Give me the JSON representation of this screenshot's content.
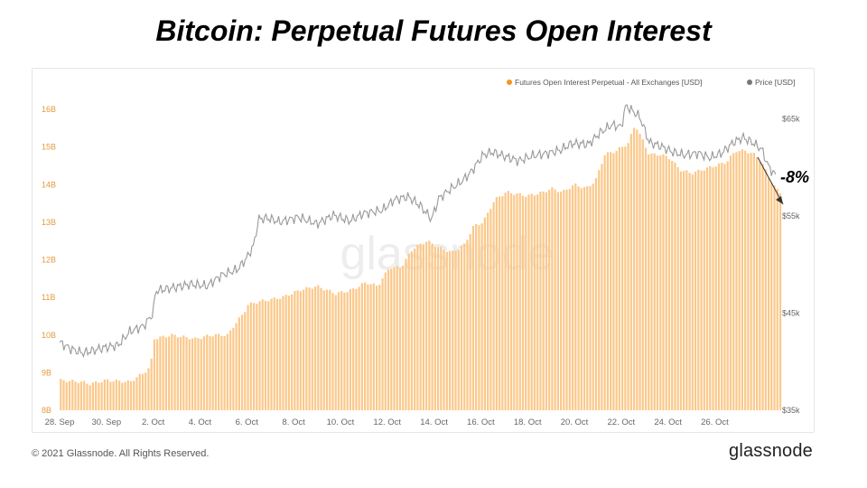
{
  "title": "Bitcoin: Perpetual Futures Open Interest",
  "footer": {
    "copyright": "© 2021 Glassnode. All Rights Reserved.",
    "brand": "glassnode"
  },
  "watermark": "glassnode",
  "annotation": {
    "text": "-8%"
  },
  "colors": {
    "oi": "#f7931a",
    "oi_fill": "#fbc88a",
    "price": "#999999",
    "axis_text": "#e39b3e",
    "right_axis_text": "#666666"
  },
  "chart_data": {
    "type": "bar",
    "title": "Bitcoin: Perpetual Futures Open Interest",
    "legend_position": "top-right",
    "x_tick_labels": [
      "28. Sep",
      "30. Sep",
      "2. Oct",
      "4. Oct",
      "6. Oct",
      "8. Oct",
      "10. Oct",
      "12. Oct",
      "14. Oct",
      "16. Oct",
      "18. Oct",
      "20. Oct",
      "22. Oct",
      "24. Oct",
      "26. Oct"
    ],
    "x_range_days": [
      0,
      30.8
    ],
    "left_axis": {
      "label": "",
      "ticks": [
        "8B",
        "9B",
        "10B",
        "11B",
        "12B",
        "13B",
        "14B",
        "15B",
        "16B"
      ],
      "ylim": [
        8,
        16
      ]
    },
    "right_axis": {
      "label": "",
      "ticks": [
        "$35k",
        "$45k",
        "$55k",
        "$65k"
      ],
      "ylim": [
        35,
        66
      ]
    },
    "series": [
      {
        "name": "Futures Open Interest Perpetual - All Exchanges [USD]",
        "type": "bar",
        "axis": "left",
        "unit": "B",
        "points": [
          [
            0,
            8.8
          ],
          [
            1,
            8.75
          ],
          [
            1.3,
            8.7
          ],
          [
            2,
            8.8
          ],
          [
            3,
            8.75
          ],
          [
            3.6,
            9.0
          ],
          [
            3.9,
            9.15
          ],
          [
            4.0,
            9.9
          ],
          [
            4.8,
            10.0
          ],
          [
            5.8,
            9.9
          ],
          [
            6.5,
            10.0
          ],
          [
            7.2,
            10.0
          ],
          [
            7.5,
            10.3
          ],
          [
            7.9,
            10.6
          ],
          [
            8.0,
            10.8
          ],
          [
            8.6,
            10.9
          ],
          [
            9.5,
            11.0
          ],
          [
            10.3,
            11.2
          ],
          [
            11.0,
            11.3
          ],
          [
            11.8,
            11.1
          ],
          [
            12.5,
            11.2
          ],
          [
            13.1,
            11.4
          ],
          [
            13.6,
            11.3
          ],
          [
            14.1,
            11.8
          ],
          [
            14.6,
            11.8
          ],
          [
            15.1,
            12.3
          ],
          [
            15.7,
            12.5
          ],
          [
            16.3,
            12.3
          ],
          [
            16.8,
            12.2
          ],
          [
            17.3,
            12.4
          ],
          [
            17.7,
            12.9
          ],
          [
            18.1,
            13.0
          ],
          [
            18.6,
            13.6
          ],
          [
            19.1,
            13.8
          ],
          [
            20.0,
            13.7
          ],
          [
            20.7,
            13.8
          ],
          [
            21.0,
            13.9
          ],
          [
            21.5,
            13.8
          ],
          [
            22.0,
            14.0
          ],
          [
            22.5,
            13.9
          ],
          [
            22.9,
            14.1
          ],
          [
            23.3,
            14.8
          ],
          [
            23.8,
            14.9
          ],
          [
            24.3,
            15.1
          ],
          [
            24.6,
            15.6
          ],
          [
            24.9,
            15.2
          ],
          [
            25.2,
            14.8
          ],
          [
            25.7,
            14.8
          ],
          [
            26.1,
            14.7
          ],
          [
            26.5,
            14.4
          ],
          [
            27.0,
            14.3
          ],
          [
            27.5,
            14.4
          ],
          [
            28.0,
            14.5
          ],
          [
            28.5,
            14.6
          ],
          [
            28.9,
            14.9
          ],
          [
            29.3,
            14.9
          ],
          [
            29.7,
            14.8
          ],
          [
            30.0,
            14.6
          ],
          [
            30.3,
            14.2
          ],
          [
            30.6,
            13.9
          ],
          [
            30.8,
            13.8
          ]
        ]
      },
      {
        "name": "Price [USD]",
        "type": "line",
        "axis": "right",
        "unit": "k",
        "points": [
          [
            0,
            42
          ],
          [
            0.5,
            41.3
          ],
          [
            1,
            40.9
          ],
          [
            1.5,
            41.2
          ],
          [
            2,
            41.5
          ],
          [
            2.5,
            41.7
          ],
          [
            3,
            43.1
          ],
          [
            3.6,
            43.7
          ],
          [
            4.0,
            45.0
          ],
          [
            4.1,
            47.3
          ],
          [
            4.8,
            47.6
          ],
          [
            5.6,
            48.0
          ],
          [
            6.3,
            47.8
          ],
          [
            6.9,
            48.9
          ],
          [
            7.6,
            49.5
          ],
          [
            8.0,
            50.7
          ],
          [
            8.3,
            52.0
          ],
          [
            8.5,
            54.7
          ],
          [
            8.9,
            54.8
          ],
          [
            9.4,
            54.4
          ],
          [
            10.2,
            54.9
          ],
          [
            11.0,
            54.2
          ],
          [
            11.7,
            55.1
          ],
          [
            12.4,
            54.5
          ],
          [
            13.0,
            55.3
          ],
          [
            13.8,
            55.6
          ],
          [
            14.3,
            56.7
          ],
          [
            14.9,
            57.0
          ],
          [
            15.4,
            56.1
          ],
          [
            15.9,
            54.7
          ],
          [
            16.2,
            56.8
          ],
          [
            16.6,
            57.6
          ],
          [
            17.2,
            58.6
          ],
          [
            17.6,
            59.6
          ],
          [
            18.1,
            61.3
          ],
          [
            18.5,
            61.6
          ],
          [
            19.1,
            61.1
          ],
          [
            19.6,
            60.7
          ],
          [
            20.2,
            61.2
          ],
          [
            20.9,
            61.5
          ],
          [
            21.4,
            61.8
          ],
          [
            21.9,
            62.5
          ],
          [
            22.6,
            62.4
          ],
          [
            23.1,
            63.6
          ],
          [
            23.6,
            64.4
          ],
          [
            24.0,
            64.2
          ],
          [
            24.2,
            66.4
          ],
          [
            24.5,
            65.8
          ],
          [
            24.8,
            65.2
          ],
          [
            25.2,
            62.6
          ],
          [
            25.7,
            62.2
          ],
          [
            26.2,
            61.6
          ],
          [
            26.7,
            61.3
          ],
          [
            27.3,
            61.5
          ],
          [
            27.8,
            61.0
          ],
          [
            28.3,
            61.5
          ],
          [
            28.8,
            62.6
          ],
          [
            29.2,
            63.1
          ],
          [
            29.6,
            62.6
          ],
          [
            30.0,
            61.9
          ],
          [
            30.3,
            60.1
          ],
          [
            30.6,
            59.2
          ]
        ]
      }
    ]
  }
}
